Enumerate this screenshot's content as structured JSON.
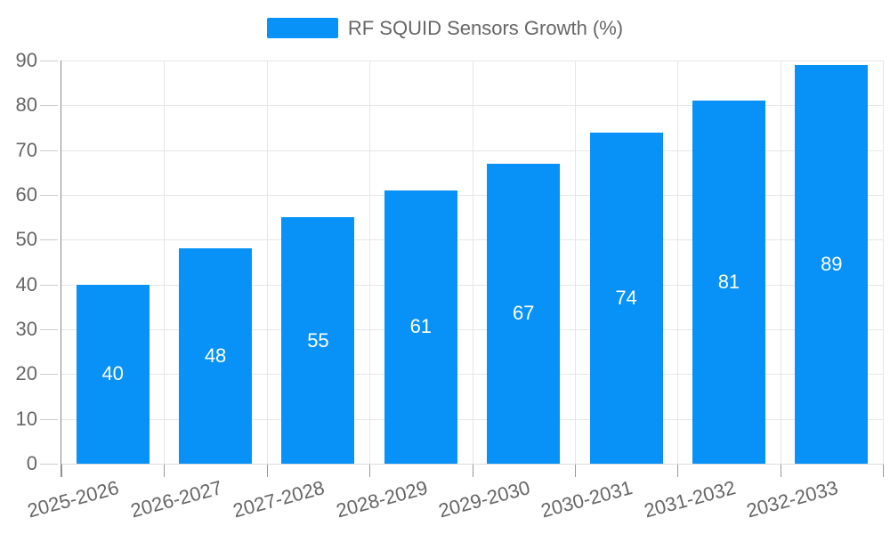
{
  "legend": {
    "label": "RF SQUID Sensors Growth (%)"
  },
  "chart_data": {
    "type": "bar",
    "title": "",
    "categories": [
      "2025-2026",
      "2026-2027",
      "2027-2028",
      "2028-2029",
      "2029-2030",
      "2030-2031",
      "2031-2032",
      "2032-2033"
    ],
    "series": [
      {
        "name": "RF SQUID Sensors Growth (%)",
        "values": [
          40,
          48,
          55,
          61,
          67,
          74,
          81,
          89
        ]
      }
    ],
    "xlabel": "",
    "ylabel": "",
    "ylim": [
      0,
      90
    ],
    "ytick_step": 10,
    "grid": true,
    "legend_position": "top-center",
    "bar_color": "#0892f8",
    "value_label_color": "#ffffff",
    "axis_label_color": "#666666"
  }
}
